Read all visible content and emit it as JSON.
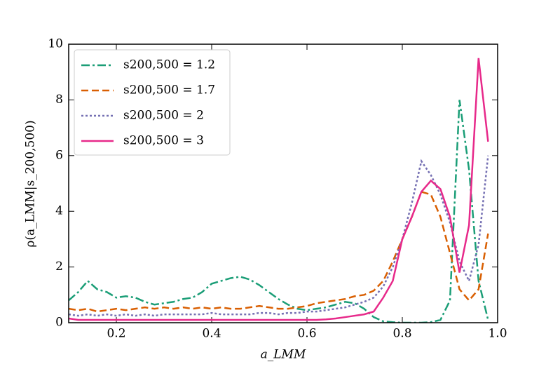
{
  "chart_data": {
    "type": "line",
    "xlabel": "a_LMM",
    "ylabel": "ρ(a_LMM|s_200,500)",
    "x": [
      0.1,
      0.12,
      0.14,
      0.16,
      0.18,
      0.2,
      0.22,
      0.24,
      0.26,
      0.28,
      0.3,
      0.32,
      0.34,
      0.36,
      0.38,
      0.4,
      0.42,
      0.44,
      0.46,
      0.48,
      0.5,
      0.52,
      0.54,
      0.56,
      0.58,
      0.6,
      0.62,
      0.64,
      0.66,
      0.68,
      0.7,
      0.72,
      0.74,
      0.76,
      0.78,
      0.8,
      0.82,
      0.84,
      0.86,
      0.88,
      0.9,
      0.92,
      0.94,
      0.96,
      0.98
    ],
    "series": [
      {
        "name": "s200,500 = 1.2",
        "color": "#1b9e77",
        "linestyle": "dashdot",
        "values": [
          0.8,
          1.1,
          1.5,
          1.2,
          1.1,
          0.9,
          0.95,
          0.9,
          0.75,
          0.65,
          0.7,
          0.75,
          0.85,
          0.9,
          1.1,
          1.4,
          1.5,
          1.6,
          1.65,
          1.55,
          1.35,
          1.1,
          0.85,
          0.65,
          0.5,
          0.45,
          0.5,
          0.55,
          0.65,
          0.75,
          0.7,
          0.5,
          0.2,
          0.05,
          0.02,
          0,
          0,
          0,
          0.02,
          0.1,
          0.8,
          8.0,
          5.5,
          1.5,
          0.1
        ]
      },
      {
        "name": "s200,500 = 1.7",
        "color": "#d95f02",
        "linestyle": "dashed",
        "values": [
          0.5,
          0.45,
          0.5,
          0.4,
          0.45,
          0.5,
          0.45,
          0.5,
          0.55,
          0.5,
          0.55,
          0.5,
          0.55,
          0.5,
          0.55,
          0.5,
          0.55,
          0.5,
          0.5,
          0.55,
          0.6,
          0.55,
          0.5,
          0.5,
          0.55,
          0.6,
          0.7,
          0.75,
          0.8,
          0.85,
          0.95,
          1.0,
          1.15,
          1.5,
          2.2,
          3.0,
          3.8,
          4.7,
          4.6,
          3.8,
          2.5,
          1.2,
          0.8,
          1.2,
          3.2
        ]
      },
      {
        "name": "s200,500 = 2",
        "color": "#7570b3",
        "linestyle": "dotted",
        "values": [
          0.3,
          0.25,
          0.3,
          0.25,
          0.3,
          0.25,
          0.3,
          0.25,
          0.3,
          0.25,
          0.3,
          0.3,
          0.3,
          0.3,
          0.3,
          0.35,
          0.3,
          0.3,
          0.3,
          0.3,
          0.35,
          0.35,
          0.3,
          0.35,
          0.35,
          0.4,
          0.4,
          0.45,
          0.5,
          0.55,
          0.65,
          0.75,
          0.9,
          1.3,
          2.0,
          3.0,
          4.3,
          5.8,
          5.3,
          4.6,
          3.6,
          2.2,
          1.5,
          2.8,
          6.0
        ]
      },
      {
        "name": "s200,500 = 3",
        "color": "#e7298a",
        "linestyle": "solid",
        "values": [
          0.15,
          0.1,
          0.1,
          0.1,
          0.1,
          0.1,
          0.1,
          0.1,
          0.1,
          0.1,
          0.1,
          0.1,
          0.1,
          0.1,
          0.1,
          0.1,
          0.1,
          0.1,
          0.1,
          0.1,
          0.1,
          0.1,
          0.1,
          0.1,
          0.1,
          0.1,
          0.1,
          0.12,
          0.15,
          0.2,
          0.25,
          0.3,
          0.4,
          0.9,
          1.5,
          3.0,
          3.8,
          4.7,
          5.1,
          4.8,
          3.8,
          1.8,
          3.5,
          9.5,
          6.5
        ]
      }
    ],
    "xlim": [
      0.1,
      1.0
    ],
    "ylim": [
      0,
      10
    ],
    "xticks": [
      0.2,
      0.4,
      0.6,
      0.8,
      {
        "value": 1.0,
        "label": "1.0"
      }
    ],
    "yticks": [
      0,
      2,
      4,
      6,
      8,
      10
    ],
    "legend": "upper left"
  }
}
